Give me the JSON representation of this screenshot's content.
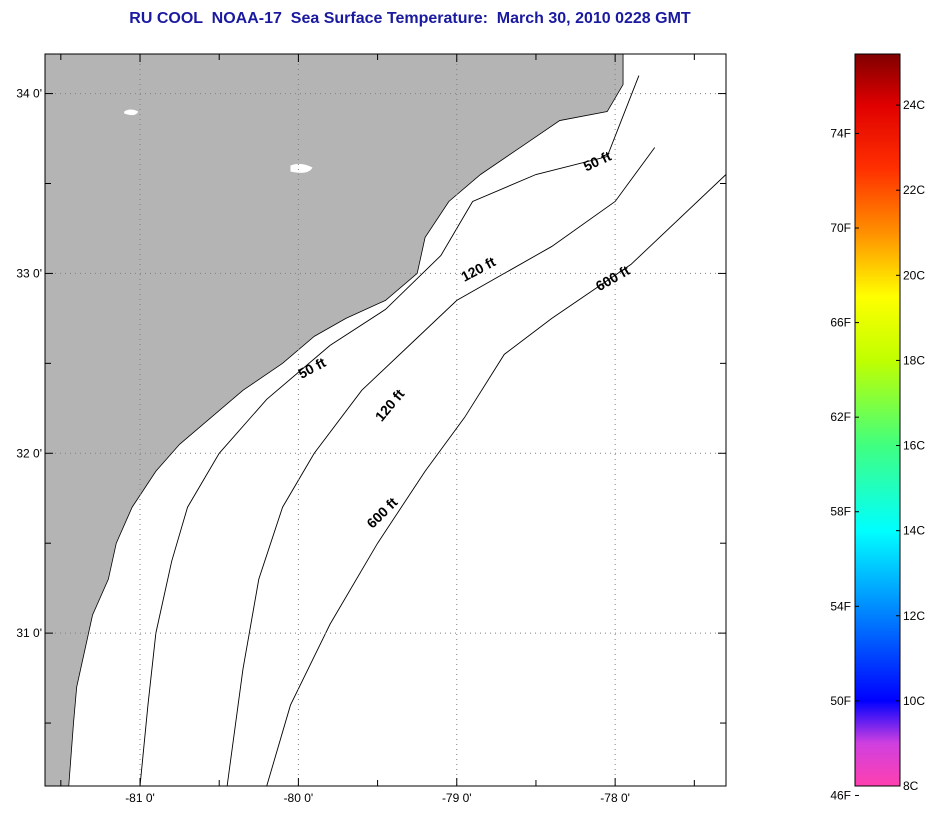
{
  "title": "RU COOL  NOAA-17  Sea Surface Temperature:  March 30, 2010 0228 GMT",
  "map": {
    "lon_range": [
      -81.6,
      -77.3
    ],
    "lat_range": [
      30.15,
      34.22
    ],
    "lon_ticks": [
      {
        "value": -81,
        "label": "-81 0'"
      },
      {
        "value": -80,
        "label": "-80 0'"
      },
      {
        "value": -79,
        "label": "-79 0'"
      },
      {
        "value": -78,
        "label": "-78 0'"
      }
    ],
    "lat_ticks": [
      {
        "value": 34,
        "label": "34 0'"
      },
      {
        "value": 33,
        "label": "33 0'"
      },
      {
        "value": 32,
        "label": "32 0'"
      },
      {
        "value": 31,
        "label": "31 0'"
      }
    ],
    "minor_lat_ticks": [
      33.5,
      32.5,
      31.5,
      30.5
    ],
    "minor_lon_ticks": [
      -81.5,
      -80.5,
      -79.5,
      -78.5,
      -77.5
    ],
    "contour_labels": [
      {
        "text": "50 ft",
        "lon": -78.1,
        "lat": 33.6,
        "angle": -25
      },
      {
        "text": "120 ft",
        "lon": -78.85,
        "lat": 33.0,
        "angle": -28
      },
      {
        "text": "600 ft",
        "lon": -78.0,
        "lat": 32.95,
        "angle": -30
      },
      {
        "text": "50 ft",
        "lon": -79.9,
        "lat": 32.45,
        "angle": -28
      },
      {
        "text": "120 ft",
        "lon": -79.4,
        "lat": 32.25,
        "angle": -50
      },
      {
        "text": "600 ft",
        "lon": -79.45,
        "lat": 31.65,
        "angle": -45
      }
    ],
    "colors": {
      "land": "#b4b4b4",
      "ocean": "#ffffff",
      "grid": "#808080"
    }
  },
  "colorbar": {
    "fahrenheit_labels": [
      "74F",
      "70F",
      "66F",
      "62F",
      "58F",
      "54F",
      "50F",
      "46F"
    ],
    "celsius_labels": [
      "24C",
      "22C",
      "20C",
      "18C",
      "16C",
      "14C",
      "12C",
      "10C",
      "8C"
    ],
    "temperature_range_c": [
      8,
      25.2
    ],
    "color_stops": [
      {
        "c": 8,
        "color": "#ff40b0"
      },
      {
        "c": 9,
        "color": "#d040e0"
      },
      {
        "c": 10,
        "color": "#0000ff"
      },
      {
        "c": 12,
        "color": "#0080ff"
      },
      {
        "c": 14,
        "color": "#00ffff"
      },
      {
        "c": 16,
        "color": "#40ff80"
      },
      {
        "c": 18,
        "color": "#c0ff00"
      },
      {
        "c": 19.5,
        "color": "#ffff00"
      },
      {
        "c": 21,
        "color": "#ff9000"
      },
      {
        "c": 22.5,
        "color": "#ff3000"
      },
      {
        "c": 24,
        "color": "#e00000"
      },
      {
        "c": 25.2,
        "color": "#800000"
      }
    ]
  }
}
